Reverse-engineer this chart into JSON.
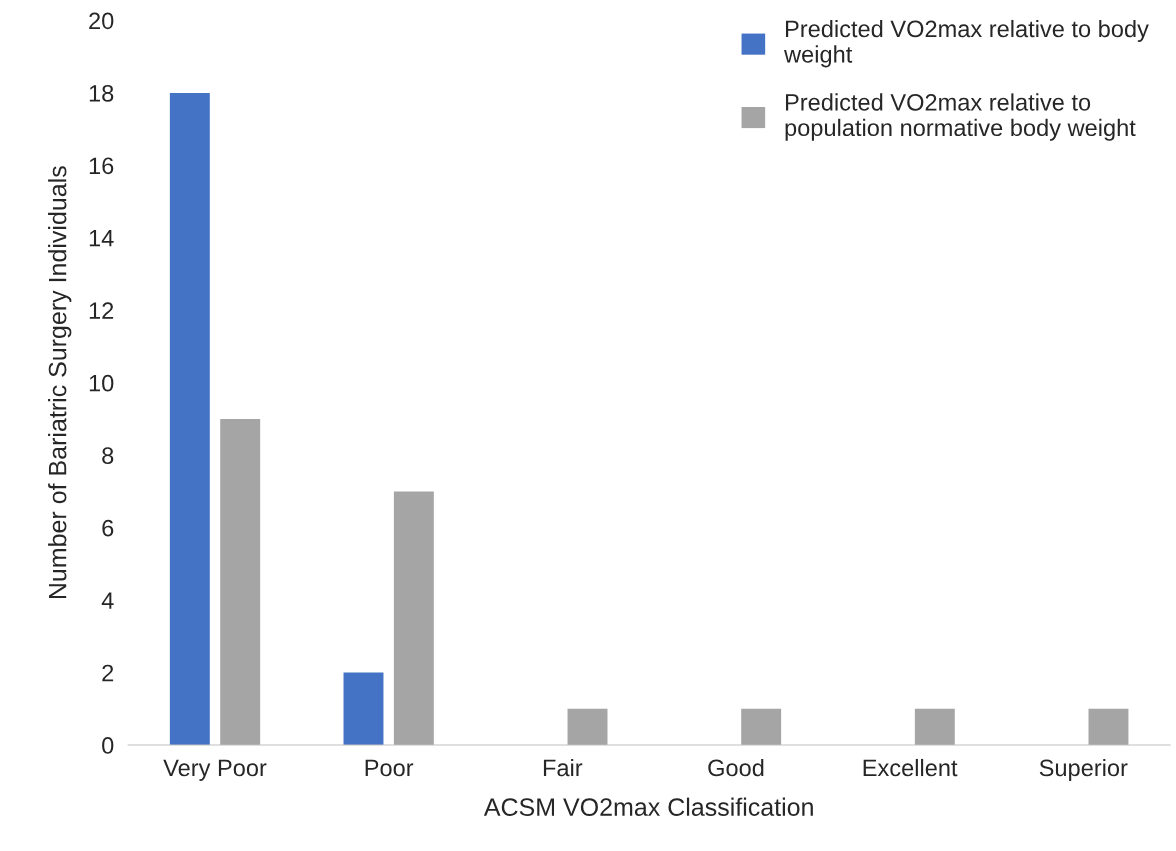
{
  "chart_data": {
    "type": "bar",
    "xlabel": "ACSM VO2max Classification",
    "ylabel": "Number of Bariatric Surgery Individuals",
    "categories": [
      "Very Poor",
      "Poor",
      "Fair",
      "Good",
      "Excellent",
      "Superior"
    ],
    "series": [
      {
        "name": "Predicted VO2max relative to body\nweight",
        "color": "#4472c4",
        "values": [
          18,
          2,
          0,
          0,
          0,
          0
        ]
      },
      {
        "name": "Predicted VO2max relative to\npopulation normative body weight",
        "color": "#a5a5a5",
        "values": [
          9,
          7,
          1,
          1,
          1,
          1
        ]
      }
    ],
    "ylim": [
      0,
      20
    ],
    "yticks": [
      0,
      2,
      4,
      6,
      8,
      10,
      12,
      14,
      16,
      18,
      20
    ],
    "grid": false,
    "legend": "top right"
  }
}
